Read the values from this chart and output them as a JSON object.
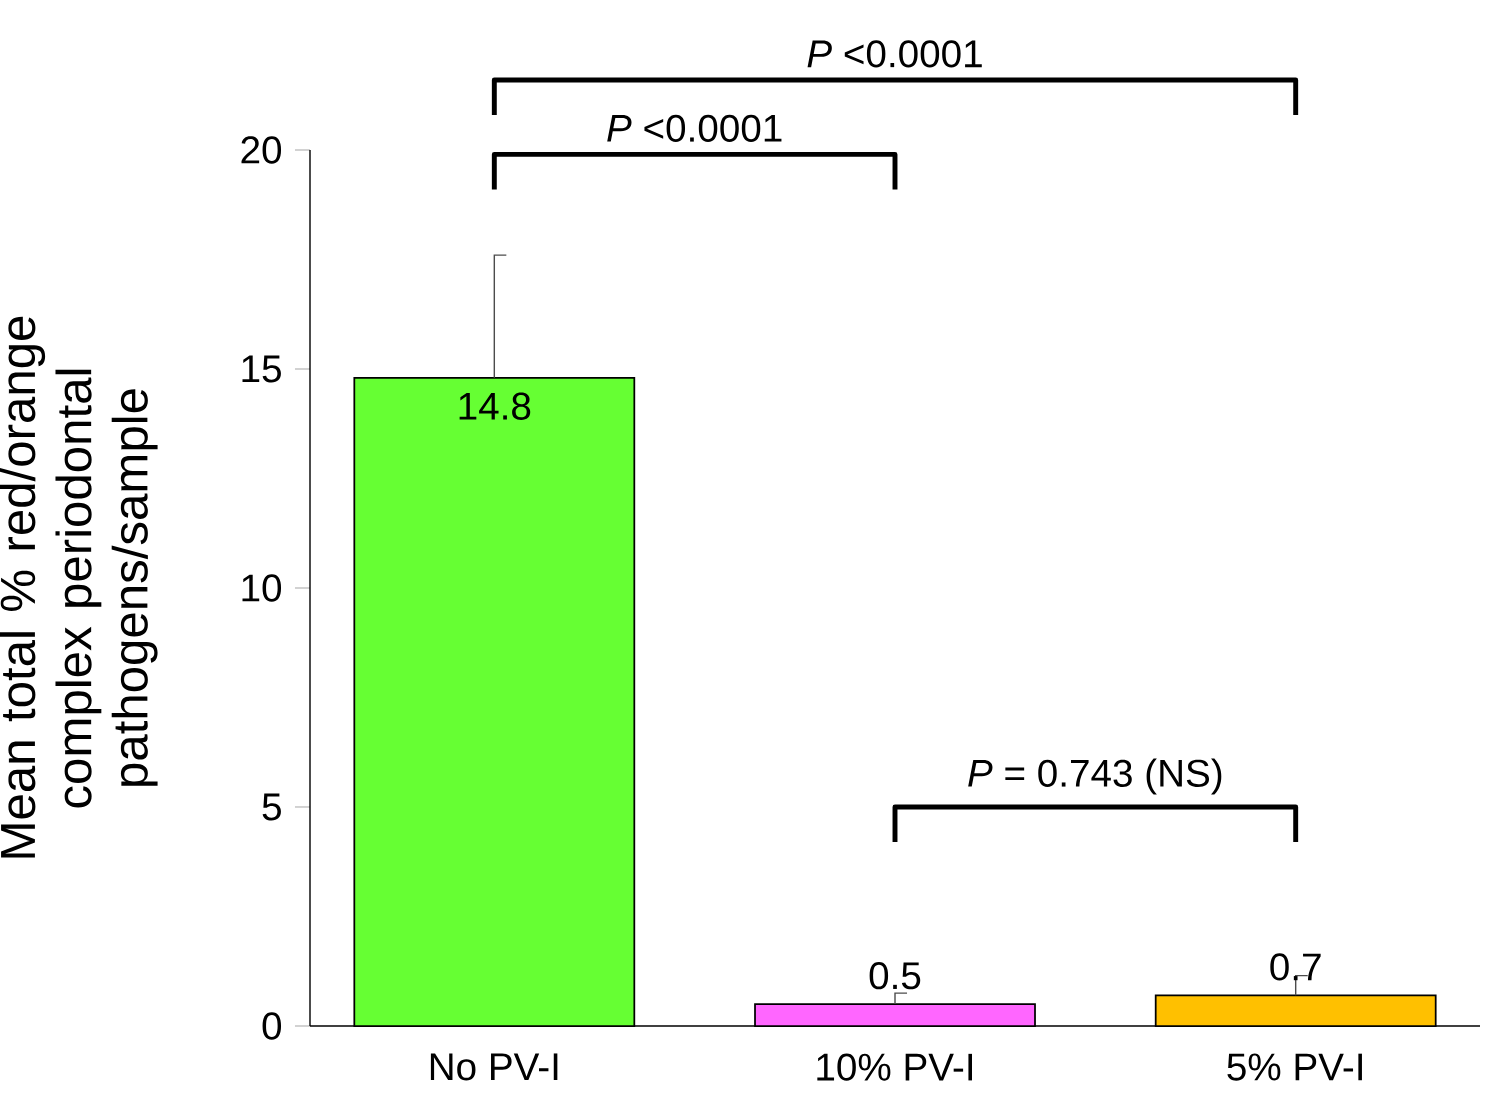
{
  "chart_data": {
    "type": "bar",
    "ylabel": "Mean total % red/orange complex periodontal pathogens/sample",
    "categories": [
      "No PV-I",
      "10% PV-I",
      "5% PV-I"
    ],
    "values": [
      14.8,
      0.5,
      0.7
    ],
    "colors": [
      "#66ff33",
      "#ff66ff",
      "#ffc000"
    ],
    "errors": [
      [
        14.8,
        17.6
      ],
      [
        0.5,
        0.75
      ],
      [
        0.7,
        1.15
      ]
    ],
    "ylim": [
      0,
      20
    ],
    "yticks": [
      0,
      5,
      10,
      15,
      20
    ],
    "data_labels": true,
    "grid": false,
    "legend": false,
    "annotations": [
      "*P* <0.0001",
      "*P* <0.0001",
      "*P* = 0.743 (NS)"
    ]
  }
}
